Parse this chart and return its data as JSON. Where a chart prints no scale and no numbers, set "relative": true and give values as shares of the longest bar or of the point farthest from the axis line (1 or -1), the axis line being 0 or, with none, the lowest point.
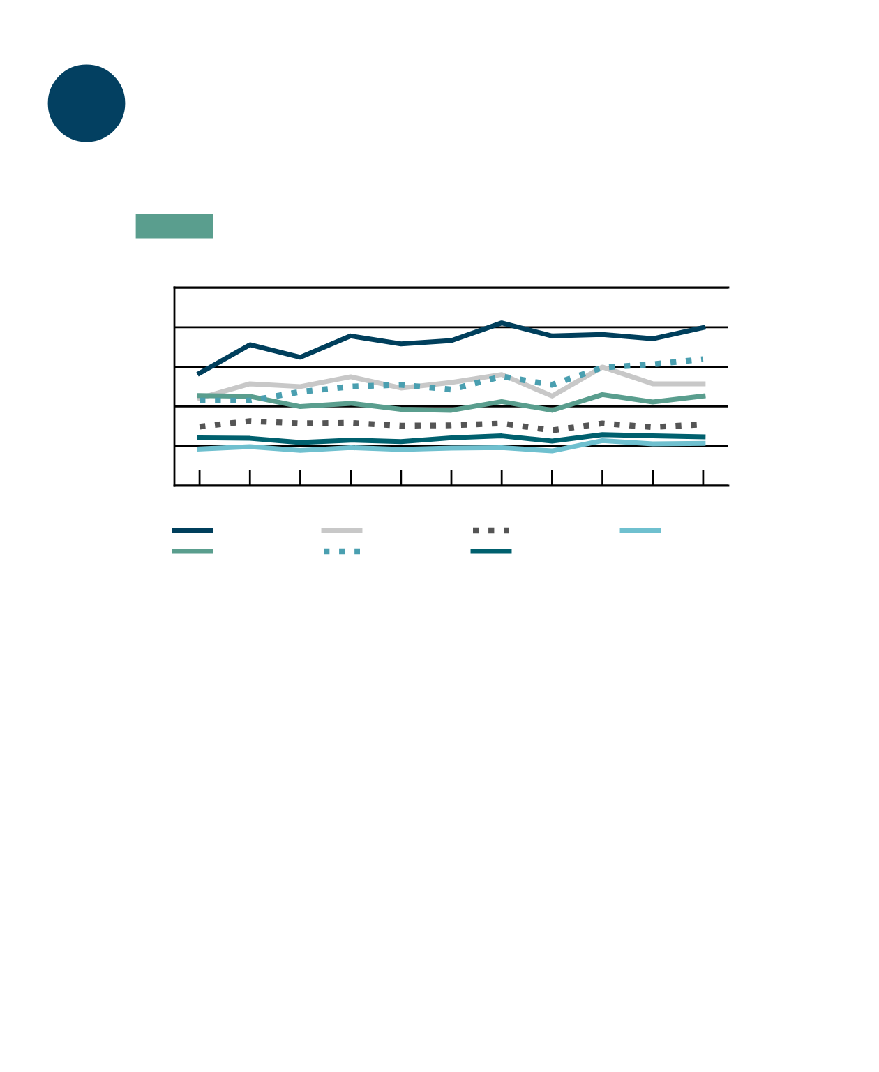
{
  "chart_data": {
    "type": "line",
    "relative": true,
    "categories": [
      null,
      null,
      null,
      null,
      null,
      null,
      null,
      null,
      null,
      null,
      null
    ],
    "grid": "y",
    "series": [
      {
        "color": "#003f5c",
        "values": [
          0.691,
          0.866,
          0.789,
          0.92,
          0.871,
          0.891,
          1.0,
          0.92,
          0.929,
          0.903,
          0.971
        ]
      },
      {
        "color": "#c8c8c8",
        "values": [
          0.537,
          0.626,
          0.609,
          0.669,
          0.6,
          0.634,
          0.683,
          0.551,
          0.729,
          0.626,
          0.626
        ]
      },
      {
        "color": "#555555",
        "line_style": "dotted",
        "values": [
          0.363,
          0.397,
          0.383,
          0.386,
          0.369,
          0.371,
          0.383,
          0.34,
          0.383,
          0.36,
          0.377
        ]
      },
      {
        "color": "#6fc0cf",
        "values": [
          0.226,
          0.24,
          0.217,
          0.234,
          0.223,
          0.231,
          0.234,
          0.214,
          0.277,
          0.257,
          0.26
        ]
      },
      {
        "color": "#5a9e8e",
        "values": [
          0.554,
          0.549,
          0.486,
          0.506,
          0.469,
          0.463,
          0.517,
          0.463,
          0.56,
          0.514,
          0.551
        ]
      },
      {
        "color": "#4a9fb0",
        "line_style": "dotted",
        "values": [
          0.523,
          0.523,
          0.577,
          0.609,
          0.62,
          0.591,
          0.671,
          0.62,
          0.726,
          0.746,
          0.777
        ]
      },
      {
        "color": "#00606e",
        "values": [
          0.294,
          0.291,
          0.266,
          0.28,
          0.271,
          0.294,
          0.306,
          0.274,
          0.314,
          0.306,
          0.3
        ]
      }
    ]
  }
}
